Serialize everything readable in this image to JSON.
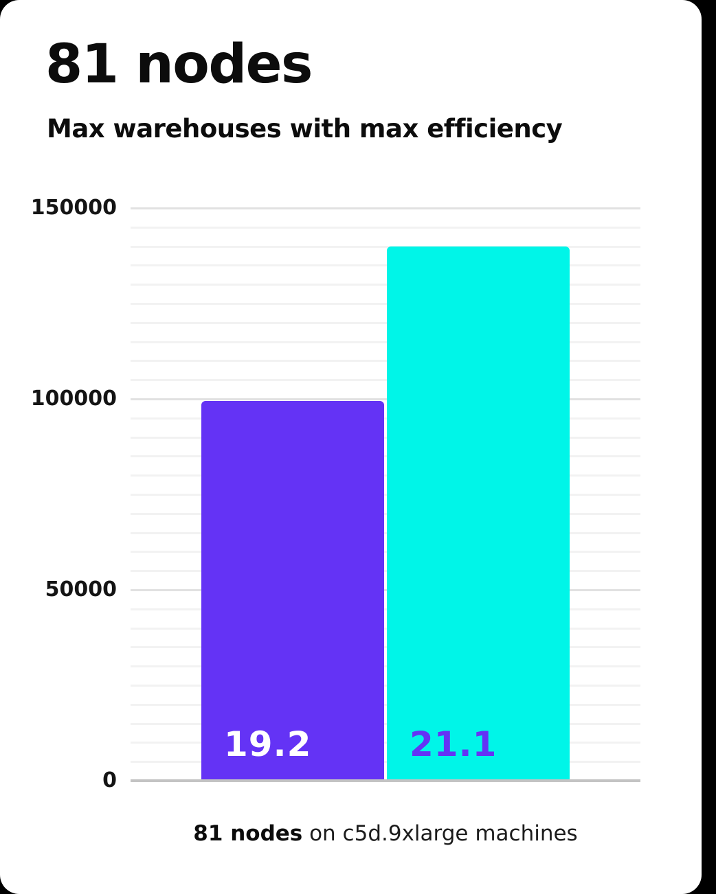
{
  "header": {
    "title": "81 nodes",
    "subtitle": "Max warehouses with max efficiency"
  },
  "caption": {
    "bold": "81 nodes",
    "rest": " on c5d.9xlarge machines"
  },
  "colors": {
    "card_background": "#ffffff",
    "text": "#0c0c0c",
    "bar_purple": "#6433f5",
    "bar_cyan": "#00f5e8",
    "label_on_purple": "#ffffff",
    "label_on_cyan": "#6433f5",
    "gridline_minor": "#f2f2f2",
    "gridline_major": "#e1e1e1",
    "axis_baseline": "#c3c3c3"
  },
  "chart_data": {
    "type": "bar",
    "title": "81 nodes",
    "subtitle": "Max warehouses with max efficiency",
    "caption": "81 nodes on c5d.9xlarge machines",
    "categories": [
      "19.2",
      "21.1"
    ],
    "values": [
      99500,
      140000
    ],
    "series": [
      {
        "name": "19.2",
        "value": 99500,
        "color": "#6433f5",
        "label": "19.2",
        "label_color": "#ffffff"
      },
      {
        "name": "21.1",
        "value": 140000,
        "color": "#00f5e8",
        "label": "21.1",
        "label_color": "#6433f5"
      }
    ],
    "xlabel": "",
    "ylabel": "",
    "ylim": [
      0,
      150000
    ],
    "yticks": [
      150000,
      100000,
      50000,
      0
    ],
    "minor_step": 5000,
    "major_step": 50000,
    "grid": true,
    "legend": false
  }
}
